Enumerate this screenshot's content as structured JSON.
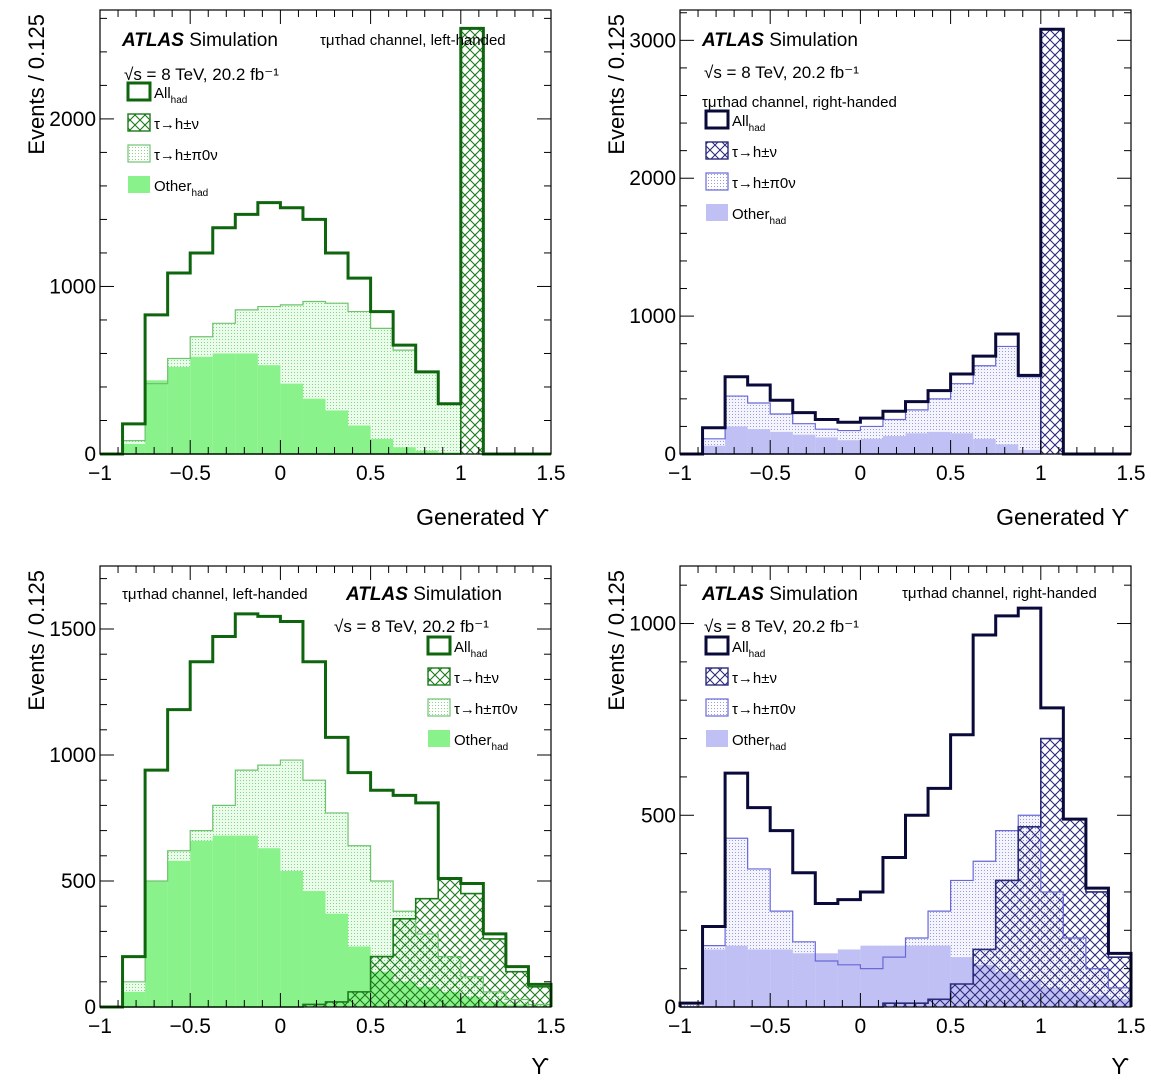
{
  "chart_data": [
    {
      "type": "bar",
      "theme": "green",
      "ylabel": "Events / 0.125",
      "xlabel": "Generated ϒ",
      "xlim": [
        -1,
        1.5
      ],
      "ylim": [
        0,
        2650
      ],
      "x_ticks": [
        "−1",
        "−0.5",
        "0",
        "0.5",
        "1",
        "1.5"
      ],
      "y_ticks": [
        {
          "v": 0,
          "label": "0"
        },
        {
          "v": 1000,
          "label": "1000"
        },
        {
          "v": 2000,
          "label": "2000"
        }
      ],
      "bin_edges": [
        -1,
        -0.875,
        -0.75,
        -0.625,
        -0.5,
        -0.375,
        -0.25,
        -0.125,
        0,
        0.125,
        0.25,
        0.375,
        0.5,
        0.625,
        0.75,
        0.875,
        1,
        1.125,
        1.25,
        1.375,
        1.5
      ],
      "series": [
        {
          "name": "All",
          "sub": "had",
          "kind": "total",
          "values": [
            0,
            180,
            830,
            1080,
            1200,
            1350,
            1430,
            1500,
            1470,
            1400,
            1200,
            1050,
            850,
            650,
            490,
            300,
            2540,
            0,
            0,
            0
          ]
        },
        {
          "name": "τ→h±ν",
          "kind": "hatch",
          "values": [
            0,
            0,
            0,
            0,
            0,
            0,
            0,
            0,
            0,
            0,
            0,
            0,
            0,
            0,
            0,
            0,
            2540,
            0,
            0,
            0
          ]
        },
        {
          "name": "τ→h±π0ν",
          "kind": "light",
          "values": [
            0,
            80,
            420,
            570,
            700,
            780,
            860,
            880,
            890,
            910,
            900,
            850,
            750,
            620,
            490,
            300,
            0,
            0,
            0,
            0
          ]
        },
        {
          "name": "Other",
          "sub": "had",
          "kind": "solid",
          "values": [
            0,
            60,
            440,
            520,
            580,
            600,
            600,
            530,
            420,
            330,
            260,
            170,
            90,
            40,
            20,
            10,
            0,
            0,
            0,
            0
          ]
        }
      ],
      "annotations": {
        "atlas": "ATLAS",
        "sim": "Simulation",
        "energy": "√s = 8 TeV, 20.2 fb⁻¹",
        "channel": "τμτhad channel, left-handed"
      }
    },
    {
      "type": "bar",
      "theme": "blue",
      "ylabel": "Events / 0.125",
      "xlabel": "Generated ϒ",
      "xlim": [
        -1,
        1.5
      ],
      "ylim": [
        0,
        3220
      ],
      "x_ticks": [
        "−1",
        "−0.5",
        "0",
        "0.5",
        "1",
        "1.5"
      ],
      "y_ticks": [
        {
          "v": 0,
          "label": "0"
        },
        {
          "v": 1000,
          "label": "1000"
        },
        {
          "v": 2000,
          "label": "2000"
        },
        {
          "v": 3000,
          "label": "3000"
        }
      ],
      "bin_edges": [
        -1,
        -0.875,
        -0.75,
        -0.625,
        -0.5,
        -0.375,
        -0.25,
        -0.125,
        0,
        0.125,
        0.25,
        0.375,
        0.5,
        0.625,
        0.75,
        0.875,
        1,
        1.125,
        1.25,
        1.375,
        1.5
      ],
      "series": [
        {
          "name": "All",
          "sub": "had",
          "kind": "total",
          "values": [
            0,
            190,
            560,
            500,
            390,
            300,
            250,
            230,
            260,
            310,
            380,
            460,
            580,
            710,
            870,
            570,
            3080,
            0,
            0,
            0
          ]
        },
        {
          "name": "τ→h±ν",
          "kind": "hatch",
          "values": [
            0,
            0,
            0,
            0,
            0,
            0,
            0,
            0,
            0,
            0,
            0,
            0,
            0,
            0,
            0,
            0,
            3080,
            0,
            0,
            0
          ]
        },
        {
          "name": "τ→h±π0ν",
          "kind": "light",
          "values": [
            0,
            110,
            420,
            370,
            290,
            220,
            180,
            170,
            200,
            250,
            320,
            400,
            510,
            640,
            780,
            560,
            0,
            0,
            0,
            0
          ]
        },
        {
          "name": "Other",
          "sub": "had",
          "kind": "solid",
          "values": [
            0,
            60,
            200,
            180,
            160,
            140,
            120,
            100,
            110,
            130,
            150,
            160,
            150,
            110,
            70,
            30,
            0,
            0,
            0,
            0
          ]
        }
      ],
      "annotations": {
        "atlas": "ATLAS",
        "sim": "Simulation",
        "energy": "√s = 8 TeV, 20.2 fb⁻¹",
        "channel": "τμτhad channel, right-handed"
      }
    },
    {
      "type": "bar",
      "theme": "green",
      "ylabel": "Events / 0.125",
      "xlabel": "ϒ",
      "xlim": [
        -1,
        1.5
      ],
      "ylim": [
        0,
        1750
      ],
      "x_ticks": [
        "−1",
        "−0.5",
        "0",
        "0.5",
        "1",
        "1.5"
      ],
      "y_ticks": [
        {
          "v": 0,
          "label": "0"
        },
        {
          "v": 500,
          "label": "500"
        },
        {
          "v": 1000,
          "label": "1000"
        },
        {
          "v": 1500,
          "label": "1500"
        }
      ],
      "bin_edges": [
        -1,
        -0.875,
        -0.75,
        -0.625,
        -0.5,
        -0.375,
        -0.25,
        -0.125,
        0,
        0.125,
        0.25,
        0.375,
        0.5,
        0.625,
        0.75,
        0.875,
        1,
        1.125,
        1.25,
        1.375,
        1.5
      ],
      "series": [
        {
          "name": "All",
          "sub": "had",
          "kind": "total",
          "values": [
            0,
            200,
            940,
            1180,
            1370,
            1470,
            1560,
            1550,
            1530,
            1370,
            1070,
            930,
            860,
            840,
            810,
            510,
            490,
            290,
            160,
            90
          ]
        },
        {
          "name": "τ→h±ν",
          "kind": "hatch",
          "values": [
            0,
            0,
            0,
            0,
            0,
            0,
            0,
            0,
            0,
            10,
            20,
            60,
            200,
            350,
            430,
            510,
            450,
            270,
            140,
            80
          ]
        },
        {
          "name": "τ→h±π0ν",
          "kind": "light",
          "values": [
            0,
            100,
            500,
            620,
            700,
            800,
            940,
            960,
            980,
            900,
            770,
            640,
            500,
            380,
            290,
            200,
            120,
            60,
            30,
            10
          ]
        },
        {
          "name": "Other",
          "sub": "had",
          "kind": "solid",
          "values": [
            0,
            60,
            500,
            580,
            660,
            680,
            680,
            630,
            540,
            460,
            370,
            240,
            140,
            100,
            80,
            60,
            40,
            20,
            10,
            5
          ]
        }
      ],
      "annotations": {
        "atlas": "ATLAS",
        "sim": "Simulation",
        "energy": "√s = 8 TeV, 20.2 fb⁻¹",
        "channel": "τμτhad channel, left-handed"
      }
    },
    {
      "type": "bar",
      "theme": "blue",
      "ylabel": "Events / 0.125",
      "xlabel": "ϒ",
      "xlim": [
        -1,
        1.5
      ],
      "ylim": [
        0,
        1150
      ],
      "x_ticks": [
        "−1",
        "−0.5",
        "0",
        "0.5",
        "1",
        "1.5"
      ],
      "y_ticks": [
        {
          "v": 0,
          "label": "0"
        },
        {
          "v": 500,
          "label": "500"
        },
        {
          "v": 1000,
          "label": "1000"
        }
      ],
      "bin_edges": [
        -1,
        -0.875,
        -0.75,
        -0.625,
        -0.5,
        -0.375,
        -0.25,
        -0.125,
        0,
        0.125,
        0.25,
        0.375,
        0.5,
        0.625,
        0.75,
        0.875,
        1,
        1.125,
        1.25,
        1.375,
        1.5
      ],
      "series": [
        {
          "name": "All",
          "sub": "had",
          "kind": "total",
          "values": [
            10,
            210,
            610,
            520,
            460,
            350,
            270,
            280,
            300,
            390,
            500,
            570,
            710,
            970,
            1020,
            1040,
            780,
            490,
            310,
            140
          ]
        },
        {
          "name": "τ→h±ν",
          "kind": "hatch",
          "values": [
            0,
            0,
            0,
            0,
            0,
            0,
            0,
            0,
            0,
            10,
            10,
            20,
            60,
            150,
            330,
            470,
            700,
            490,
            300,
            130
          ]
        },
        {
          "name": "τ→h±π0ν",
          "kind": "light",
          "values": [
            10,
            160,
            440,
            360,
            250,
            170,
            120,
            110,
            100,
            130,
            180,
            250,
            330,
            380,
            460,
            500,
            300,
            180,
            100,
            50
          ]
        },
        {
          "name": "Other",
          "sub": "had",
          "kind": "solid",
          "values": [
            0,
            150,
            160,
            150,
            150,
            140,
            140,
            150,
            160,
            160,
            160,
            160,
            130,
            110,
            90,
            70,
            50,
            40,
            30,
            20
          ]
        }
      ],
      "annotations": {
        "atlas": "ATLAS",
        "sim": "Simulation",
        "energy": "√s = 8 TeV, 20.2 fb⁻¹",
        "channel": "τμτhad channel, right-handed"
      }
    }
  ]
}
